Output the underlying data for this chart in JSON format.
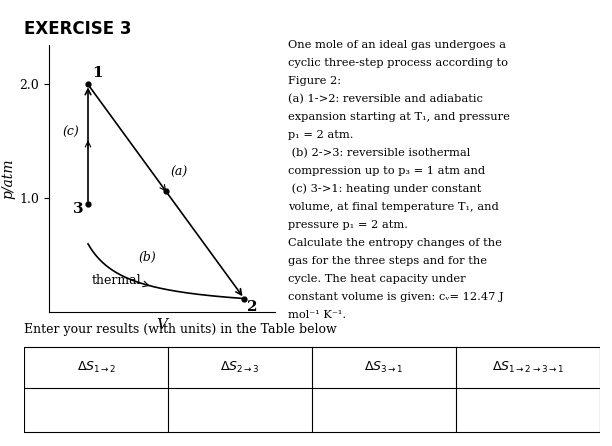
{
  "title": "EXERCISE 3",
  "ylabel": "p/atm",
  "xlabel": "V",
  "yticks": [
    1.0,
    2.0
  ],
  "point1": [
    1.0,
    2.0
  ],
  "point2": [
    5.0,
    0.12
  ],
  "point3": [
    1.0,
    0.95
  ],
  "label1": "1",
  "label2": "2",
  "label3": "3",
  "label_a": "(a)",
  "label_b": "(b)",
  "label_c": "(c)",
  "thermal_label": "thermal",
  "text_lines": [
    "One mole of an ideal gas undergoes a",
    "cyclic three-step process according to",
    "Figure 2:",
    "(a) 1->2: reversible and adiabatic",
    "expansion starting at T₁, and pressure",
    "p₁ = 2 atm.",
    " (b) 2->3: reversible isothermal",
    "compression up to p₃ = 1 atm and",
    " (c) 3->1: heating under constant",
    "volume, at final temperature T₁, and",
    "pressure p₁ = 2 atm.",
    "Calculate the entropy changes of the",
    "gas for the three steps and for the",
    "cycle. The heat capacity under",
    "constant volume is given: cᵥ= 12.47 J",
    "mol⁻¹ K⁻¹."
  ],
  "table_instruction": "Enter your results (with units) in the Table below",
  "bg_color": "#ffffff"
}
